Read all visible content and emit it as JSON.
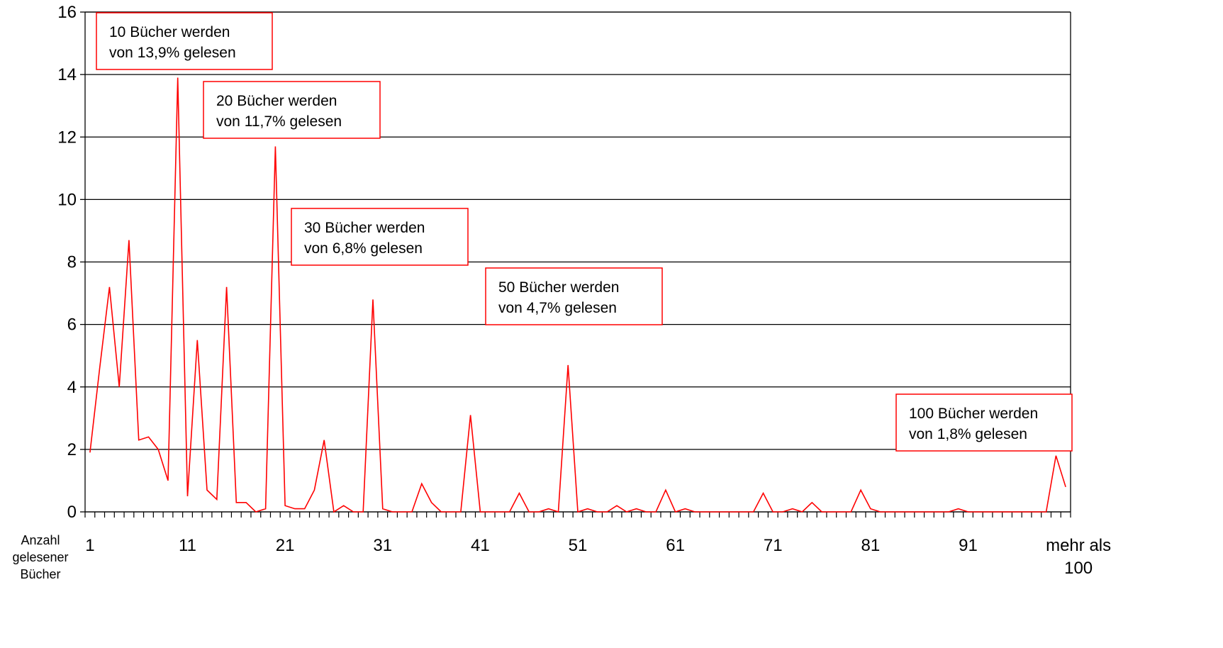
{
  "chart_data": {
    "type": "line",
    "xlabel_lines": [
      "Anzahl",
      "gelesener",
      "Bücher"
    ],
    "x_tick_labels": [
      "1",
      "11",
      "21",
      "31",
      "41",
      "51",
      "61",
      "71",
      "81",
      "91"
    ],
    "last_category_label_lines": [
      "mehr als",
      "100"
    ],
    "ylim": [
      0,
      16
    ],
    "y_ticks": [
      0,
      2,
      4,
      6,
      8,
      10,
      12,
      14,
      16
    ],
    "grid": true,
    "colors": {
      "series": "#ff0000",
      "grid": "#000000",
      "annotation_border": "#ff0000"
    },
    "series": [
      {
        "values": [
          1.9,
          4.6,
          7.2,
          4.0,
          8.7,
          2.3,
          2.4,
          2.0,
          1.0,
          13.9,
          0.5,
          5.5,
          0.7,
          0.4,
          7.2,
          0.3,
          0.3,
          0.0,
          0.1,
          11.7,
          0.2,
          0.1,
          0.1,
          0.7,
          2.3,
          0.0,
          0.2,
          0.0,
          0.0,
          6.8,
          0.1,
          0.0,
          0.0,
          0.0,
          0.9,
          0.3,
          0.0,
          0.0,
          0.0,
          3.1,
          0.0,
          0.0,
          0.0,
          0.0,
          0.6,
          0.0,
          0.0,
          0.1,
          0.0,
          4.7,
          0.0,
          0.1,
          0.0,
          0.0,
          0.2,
          0.0,
          0.1,
          0.0,
          0.0,
          0.7,
          0.0,
          0.1,
          0.0,
          0.0,
          0.0,
          0.0,
          0.0,
          0.0,
          0.0,
          0.6,
          0.0,
          0.0,
          0.1,
          0.0,
          0.3,
          0.0,
          0.0,
          0.0,
          0.0,
          0.7,
          0.1,
          0.0,
          0.0,
          0.0,
          0.0,
          0.0,
          0.0,
          0.0,
          0.0,
          0.1,
          0.0,
          0.0,
          0.0,
          0.0,
          0.0,
          0.0,
          0.0,
          0.0,
          0.0,
          1.8,
          0.8
        ]
      }
    ],
    "annotations": [
      {
        "lines": [
          "10 Bücher werden",
          "von 13,9% gelesen"
        ]
      },
      {
        "lines": [
          "20 Bücher werden",
          "von 11,7% gelesen"
        ]
      },
      {
        "lines": [
          "30 Bücher werden",
          "von 6,8% gelesen"
        ]
      },
      {
        "lines": [
          "50 Bücher werden",
          "von 4,7% gelesen"
        ]
      },
      {
        "lines": [
          "100 Bücher werden",
          "von 1,8% gelesen"
        ]
      }
    ]
  }
}
